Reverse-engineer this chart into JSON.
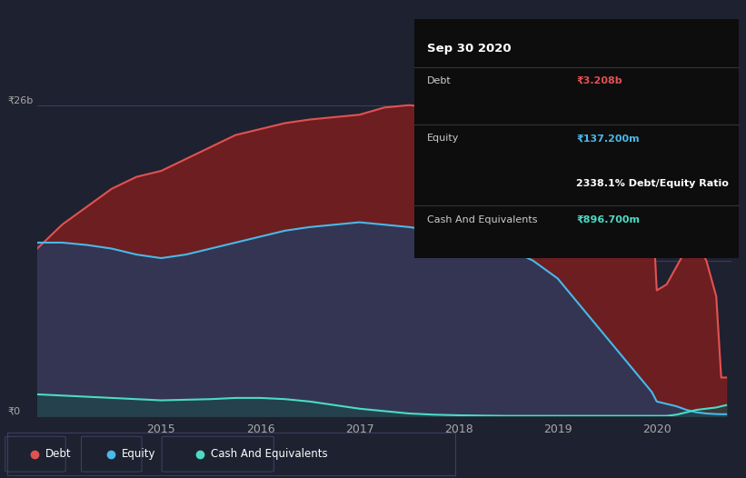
{
  "bg_color": "#1e2130",
  "y_label_top": "₹26b",
  "y_label_bottom": "₹0",
  "x_ticks": [
    "2015",
    "2016",
    "2017",
    "2018",
    "2019",
    "2020"
  ],
  "debt_color": "#e05252",
  "equity_color": "#4ab8e8",
  "cash_color": "#4cdbc4",
  "debt_fill_color": "#7b1e1e",
  "equity_fill_color": "#2a3a5c",
  "cash_fill_color": "#1a4a4a",
  "tooltip_bg": "#0d0d0d",
  "tooltip_title": "Sep 30 2020",
  "tooltip_debt_label": "Debt",
  "tooltip_debt_value": "₹3.208b",
  "tooltip_equity_label": "Equity",
  "tooltip_equity_value": "₹137.200m",
  "tooltip_ratio": "2338.1% Debt/Equity Ratio",
  "tooltip_cash_label": "Cash And Equivalents",
  "tooltip_cash_value": "₹896.700m",
  "legend_items": [
    "Debt",
    "Equity",
    "Cash And Equivalents"
  ],
  "time": [
    2013.75,
    2014.0,
    2014.25,
    2014.5,
    2014.75,
    2015.0,
    2015.25,
    2015.5,
    2015.75,
    2016.0,
    2016.25,
    2016.5,
    2016.75,
    2017.0,
    2017.25,
    2017.5,
    2017.75,
    2018.0,
    2018.25,
    2018.5,
    2018.75,
    2019.0,
    2019.25,
    2019.5,
    2019.75,
    2019.85,
    2019.95,
    2020.0,
    2020.1,
    2020.2,
    2020.3,
    2020.4,
    2020.5,
    2020.6,
    2020.65,
    2020.7
  ],
  "debt": [
    14.0,
    16.0,
    17.5,
    19.0,
    20.0,
    20.5,
    21.5,
    22.5,
    23.5,
    24.0,
    24.5,
    24.8,
    25.0,
    25.2,
    25.8,
    26.0,
    25.8,
    25.6,
    25.8,
    26.0,
    25.7,
    25.5,
    25.0,
    24.0,
    21.0,
    19.5,
    18.5,
    10.5,
    11.0,
    12.5,
    14.0,
    14.5,
    13.0,
    10.0,
    3.208,
    3.208
  ],
  "equity": [
    14.5,
    14.5,
    14.3,
    14.0,
    13.5,
    13.2,
    13.5,
    14.0,
    14.5,
    15.0,
    15.5,
    15.8,
    16.0,
    16.2,
    16.0,
    15.8,
    15.5,
    15.0,
    14.5,
    14.0,
    13.0,
    11.5,
    9.0,
    6.5,
    4.0,
    3.0,
    2.0,
    1.2,
    1.0,
    0.8,
    0.5,
    0.3,
    0.2,
    0.15,
    0.1372,
    0.1372
  ],
  "cash": [
    1.8,
    1.7,
    1.6,
    1.5,
    1.4,
    1.3,
    1.35,
    1.4,
    1.5,
    1.5,
    1.4,
    1.2,
    0.9,
    0.6,
    0.4,
    0.2,
    0.1,
    0.05,
    0.02,
    0.0,
    0.0,
    0.0,
    0.0,
    0.0,
    0.0,
    0.0,
    0.0,
    0.0,
    0.0,
    0.1,
    0.3,
    0.5,
    0.6,
    0.7,
    0.8,
    0.8972
  ],
  "ylim": [
    0,
    28
  ],
  "xlim": [
    2013.75,
    2020.75
  ]
}
